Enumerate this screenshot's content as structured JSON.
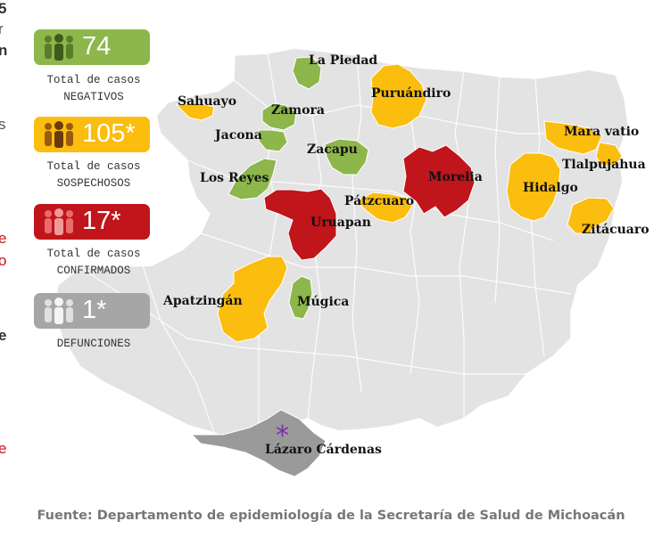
{
  "edge_text": [
    "5",
    "r",
    "n",
    "s",
    "e",
    "o",
    "e",
    "e"
  ],
  "colors": {
    "negative": "#8db64b",
    "suspect": "#fbbd0e",
    "confirmed": "#c0151b",
    "death": "#a6a6a6",
    "deathRegion": "#9a9a9a",
    "base": "#e3e3e3",
    "marker": "#7a2ea8"
  },
  "stats": [
    {
      "value": "74",
      "line1": "Total de casos",
      "line2": "NEGATIVOS",
      "color": "#8db64b",
      "icon": "people-group-icon"
    },
    {
      "value": "105*",
      "line1": "Total de casos",
      "line2": "SOSPECHOSOS",
      "color": "#fbbd0e",
      "icon": "people-group-icon"
    },
    {
      "value": "17*",
      "line1": "Total de casos",
      "line2": "CONFIRMADOS",
      "color": "#c0151b",
      "icon": "people-group-icon"
    },
    {
      "value": "1*",
      "line1": "DEFUNCIONES",
      "line2": "",
      "color": "#a6a6a6",
      "icon": "people-group-icon"
    }
  ],
  "municipalities": [
    {
      "name": "La Piedad",
      "status": "negative"
    },
    {
      "name": "Sahuayo",
      "status": "suspect"
    },
    {
      "name": "Zamora",
      "status": "negative"
    },
    {
      "name": "Puruándiro",
      "status": "suspect"
    },
    {
      "name": "Jacona",
      "status": "negative"
    },
    {
      "name": "Zacapu",
      "status": "negative"
    },
    {
      "name": "Mara vatio",
      "status": "suspect"
    },
    {
      "name": "Morelia",
      "status": "confirmed"
    },
    {
      "name": "Tlalpujahua",
      "status": "suspect"
    },
    {
      "name": "Los Reyes",
      "status": "negative"
    },
    {
      "name": "Hidalgo",
      "status": "suspect"
    },
    {
      "name": "Pátzcuaro",
      "status": "suspect"
    },
    {
      "name": "Uruapan",
      "status": "confirmed"
    },
    {
      "name": "Zitácuaro",
      "status": "suspect"
    },
    {
      "name": "Apatzingán",
      "status": "suspect"
    },
    {
      "name": "Múgica",
      "status": "negative"
    },
    {
      "name": "Lázaro Cárdenas",
      "status": "death"
    }
  ],
  "marker_symbol": "*",
  "source": "Fuente: Departamento de epidemiología de la Secretaría de Salud de Michoacán"
}
